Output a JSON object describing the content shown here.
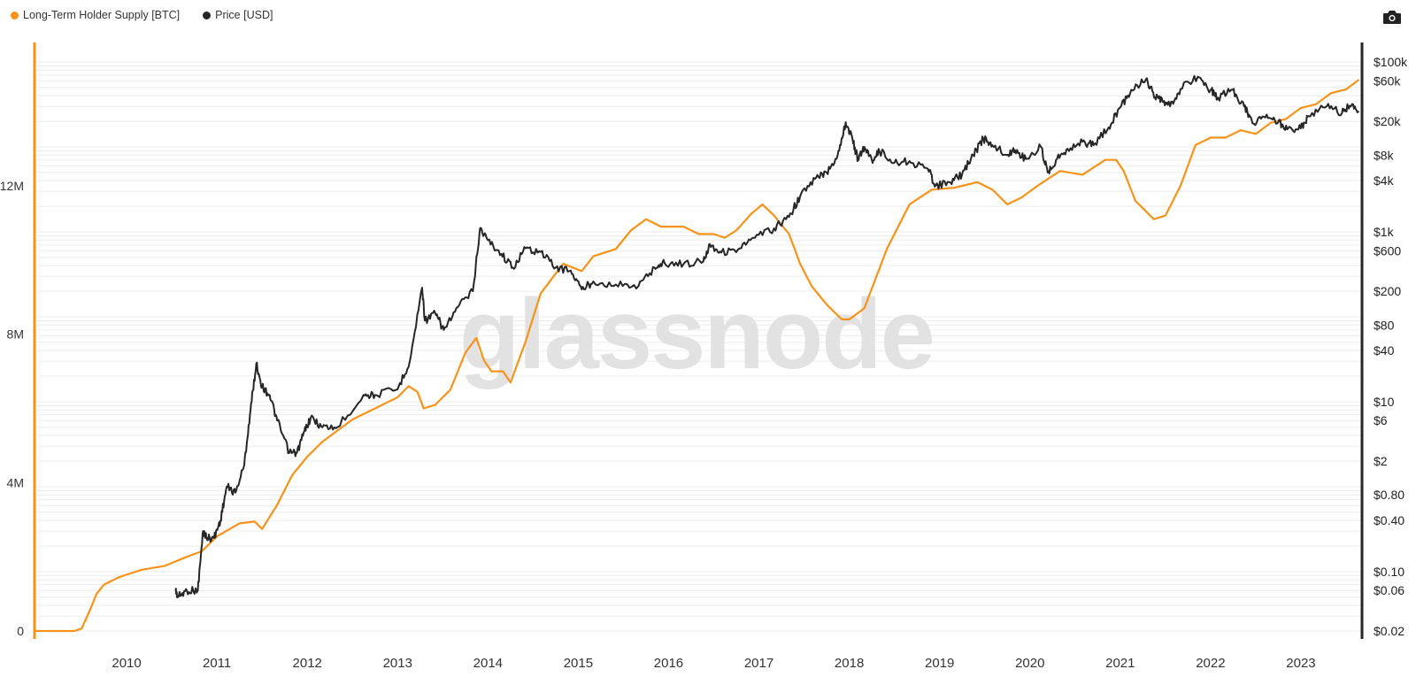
{
  "legend": {
    "lths_label": "Long-Term Holder Supply [BTC]",
    "price_label": "Price [USD]"
  },
  "watermark": "glassnode",
  "colors": {
    "lths": "#f7931a",
    "price": "#262626",
    "grid": "#ececec",
    "axis_left": "#f7931a",
    "axis_right": "#262626"
  },
  "chart_data": {
    "type": "line",
    "title": "",
    "x_axis": {
      "type": "date",
      "range": [
        "2009-01",
        "2023-09"
      ],
      "tick_labels": [
        "2010",
        "2011",
        "2012",
        "2013",
        "2014",
        "2015",
        "2016",
        "2017",
        "2018",
        "2019",
        "2020",
        "2021",
        "2022",
        "2023"
      ]
    },
    "y_left": {
      "label": "",
      "unit": "BTC",
      "range": [
        0,
        16000000
      ],
      "ticks": [
        0,
        4000000,
        8000000,
        12000000
      ],
      "tick_labels": [
        "0",
        "4M",
        "8M",
        "12M"
      ]
    },
    "y_right": {
      "label": "",
      "unit": "USD",
      "scale": "log",
      "range": [
        0.02,
        100000
      ],
      "ticks": [
        0.02,
        0.06,
        0.1,
        0.4,
        0.8,
        2,
        6,
        10,
        40,
        80,
        200,
        600,
        1000,
        4000,
        8000,
        20000,
        60000,
        100000
      ],
      "tick_labels": [
        "$0.02",
        "$0.06",
        "$0.10",
        "$0.40",
        "$0.80",
        "$2",
        "$6",
        "$10",
        "$40",
        "$80",
        "$200",
        "$600",
        "$1k",
        "$4k",
        "$8k",
        "$20k",
        "$60k",
        "$100k"
      ]
    },
    "grid": true,
    "legend_position": "top-left",
    "series": [
      {
        "name": "Long-Term Holder Supply [BTC]",
        "axis": "left",
        "color": "#f7931a",
        "points": [
          [
            "2009-01-01",
            0
          ],
          [
            "2009-06-01",
            0
          ],
          [
            "2009-07-01",
            60000
          ],
          [
            "2009-08-01",
            500000
          ],
          [
            "2009-09-01",
            1000000
          ],
          [
            "2009-10-01",
            1250000
          ],
          [
            "2009-12-01",
            1450000
          ],
          [
            "2010-03-01",
            1650000
          ],
          [
            "2010-06-01",
            1750000
          ],
          [
            "2010-09-01",
            2000000
          ],
          [
            "2010-11-01",
            2150000
          ],
          [
            "2011-01-01",
            2550000
          ],
          [
            "2011-04-01",
            2900000
          ],
          [
            "2011-06-01",
            2950000
          ],
          [
            "2011-07-01",
            2750000
          ],
          [
            "2011-09-01",
            3400000
          ],
          [
            "2011-11-01",
            4200000
          ],
          [
            "2012-01-01",
            4700000
          ],
          [
            "2012-03-01",
            5100000
          ],
          [
            "2012-07-01",
            5700000
          ],
          [
            "2012-10-01",
            6000000
          ],
          [
            "2013-01-01",
            6300000
          ],
          [
            "2013-02-15",
            6600000
          ],
          [
            "2013-03-20",
            6450000
          ],
          [
            "2013-04-15",
            6000000
          ],
          [
            "2013-06-01",
            6100000
          ],
          [
            "2013-08-01",
            6500000
          ],
          [
            "2013-10-01",
            7500000
          ],
          [
            "2013-11-15",
            7900000
          ],
          [
            "2013-12-15",
            7300000
          ],
          [
            "2014-01-15",
            7000000
          ],
          [
            "2014-03-01",
            7000000
          ],
          [
            "2014-04-01",
            6700000
          ],
          [
            "2014-06-01",
            7800000
          ],
          [
            "2014-08-01",
            9100000
          ],
          [
            "2014-11-01",
            9900000
          ],
          [
            "2015-01-15",
            9700000
          ],
          [
            "2015-03-01",
            10100000
          ],
          [
            "2015-06-01",
            10300000
          ],
          [
            "2015-08-01",
            10800000
          ],
          [
            "2015-10-01",
            11100000
          ],
          [
            "2015-12-01",
            10900000
          ],
          [
            "2016-03-01",
            10900000
          ],
          [
            "2016-05-01",
            10700000
          ],
          [
            "2016-07-01",
            10700000
          ],
          [
            "2016-08-15",
            10600000
          ],
          [
            "2016-10-01",
            10800000
          ],
          [
            "2016-12-01",
            11250000
          ],
          [
            "2017-01-15",
            11500000
          ],
          [
            "2017-03-01",
            11200000
          ],
          [
            "2017-05-01",
            10700000
          ],
          [
            "2017-06-15",
            9900000
          ],
          [
            "2017-08-01",
            9300000
          ],
          [
            "2017-10-01",
            8800000
          ],
          [
            "2017-12-01",
            8400000
          ],
          [
            "2018-01-01",
            8400000
          ],
          [
            "2018-03-01",
            8700000
          ],
          [
            "2018-06-01",
            10300000
          ],
          [
            "2018-09-01",
            11500000
          ],
          [
            "2018-12-01",
            11900000
          ],
          [
            "2019-03-01",
            11950000
          ],
          [
            "2019-06-01",
            12100000
          ],
          [
            "2019-08-01",
            11900000
          ],
          [
            "2019-10-01",
            11500000
          ],
          [
            "2019-12-01",
            11700000
          ],
          [
            "2020-02-01",
            12000000
          ],
          [
            "2020-05-01",
            12400000
          ],
          [
            "2020-08-01",
            12300000
          ],
          [
            "2020-11-01",
            12700000
          ],
          [
            "2020-12-15",
            12700000
          ],
          [
            "2021-01-15",
            12400000
          ],
          [
            "2021-03-01",
            11600000
          ],
          [
            "2021-05-15",
            11100000
          ],
          [
            "2021-07-01",
            11200000
          ],
          [
            "2021-09-01",
            12000000
          ],
          [
            "2021-11-01",
            13100000
          ],
          [
            "2022-01-01",
            13300000
          ],
          [
            "2022-03-01",
            13300000
          ],
          [
            "2022-05-01",
            13500000
          ],
          [
            "2022-07-01",
            13400000
          ],
          [
            "2022-09-01",
            13700000
          ],
          [
            "2022-11-01",
            13800000
          ],
          [
            "2023-01-01",
            14100000
          ],
          [
            "2023-03-01",
            14200000
          ],
          [
            "2023-05-01",
            14500000
          ],
          [
            "2023-07-01",
            14600000
          ],
          [
            "2023-08-20",
            14850000
          ]
        ]
      },
      {
        "name": "Price [USD]",
        "axis": "right",
        "color": "#262626",
        "points": [
          [
            "2010-07-17",
            0.06
          ],
          [
            "2010-07-25",
            0.05
          ],
          [
            "2010-09-01",
            0.06
          ],
          [
            "2010-10-15",
            0.06
          ],
          [
            "2010-11-06",
            0.3
          ],
          [
            "2010-11-20",
            0.25
          ],
          [
            "2010-12-20",
            0.25
          ],
          [
            "2011-01-15",
            0.4
          ],
          [
            "2011-02-10",
            1.0
          ],
          [
            "2011-03-15",
            0.85
          ],
          [
            "2011-04-20",
            1.8
          ],
          [
            "2011-05-15",
            8
          ],
          [
            "2011-06-08",
            28
          ],
          [
            "2011-07-01",
            15
          ],
          [
            "2011-08-01",
            12
          ],
          [
            "2011-09-01",
            6
          ],
          [
            "2011-10-20",
            2.5
          ],
          [
            "2011-11-20",
            2.5
          ],
          [
            "2011-12-20",
            4.5
          ],
          [
            "2012-01-15",
            6.5
          ],
          [
            "2012-03-01",
            5
          ],
          [
            "2012-05-01",
            5
          ],
          [
            "2012-08-15",
            12
          ],
          [
            "2012-10-01",
            12
          ],
          [
            "2013-01-01",
            14
          ],
          [
            "2013-02-20",
            30
          ],
          [
            "2013-04-09",
            220
          ],
          [
            "2013-04-20",
            90
          ],
          [
            "2013-06-01",
            110
          ],
          [
            "2013-07-05",
            70
          ],
          [
            "2013-09-01",
            130
          ],
          [
            "2013-11-01",
            200
          ],
          [
            "2013-11-30",
            1100
          ],
          [
            "2014-01-01",
            800
          ],
          [
            "2014-02-25",
            550
          ],
          [
            "2014-04-10",
            380
          ],
          [
            "2014-06-01",
            640
          ],
          [
            "2014-08-01",
            580
          ],
          [
            "2014-10-01",
            380
          ],
          [
            "2014-12-01",
            350
          ],
          [
            "2015-01-15",
            210
          ],
          [
            "2015-03-01",
            260
          ],
          [
            "2015-06-01",
            240
          ],
          [
            "2015-09-01",
            230
          ],
          [
            "2015-11-05",
            380
          ],
          [
            "2015-12-15",
            430
          ],
          [
            "2016-03-01",
            420
          ],
          [
            "2016-05-20",
            450
          ],
          [
            "2016-06-15",
            720
          ],
          [
            "2016-08-01",
            570
          ],
          [
            "2016-10-15",
            640
          ],
          [
            "2016-12-15",
            850
          ],
          [
            "2017-03-01",
            1100
          ],
          [
            "2017-05-01",
            1500
          ],
          [
            "2017-06-15",
            2600
          ],
          [
            "2017-08-15",
            4200
          ],
          [
            "2017-10-01",
            5000
          ],
          [
            "2017-11-15",
            8000
          ],
          [
            "2017-12-17",
            19500
          ],
          [
            "2018-01-15",
            12000
          ],
          [
            "2018-02-06",
            7000
          ],
          [
            "2018-03-01",
            10000
          ],
          [
            "2018-04-01",
            7000
          ],
          [
            "2018-05-01",
            9000
          ],
          [
            "2018-07-01",
            6500
          ],
          [
            "2018-09-01",
            6800
          ],
          [
            "2018-11-15",
            5500
          ],
          [
            "2018-12-15",
            3500
          ],
          [
            "2019-02-15",
            3800
          ],
          [
            "2019-04-01",
            4800
          ],
          [
            "2019-05-15",
            8000
          ],
          [
            "2019-06-26",
            12500
          ],
          [
            "2019-08-01",
            10500
          ],
          [
            "2019-10-01",
            8000
          ],
          [
            "2019-11-01",
            9200
          ],
          [
            "2019-12-15",
            7200
          ],
          [
            "2020-02-15",
            10000
          ],
          [
            "2020-03-12",
            5000
          ],
          [
            "2020-04-15",
            7000
          ],
          [
            "2020-06-01",
            9500
          ],
          [
            "2020-08-01",
            11500
          ],
          [
            "2020-09-15",
            10500
          ],
          [
            "2020-11-15",
            17000
          ],
          [
            "2020-12-31",
            29000
          ],
          [
            "2021-02-15",
            47000
          ],
          [
            "2021-04-14",
            63000
          ],
          [
            "2021-05-20",
            38000
          ],
          [
            "2021-06-20",
            34000
          ],
          [
            "2021-07-20",
            30000
          ],
          [
            "2021-09-01",
            48000
          ],
          [
            "2021-11-10",
            67000
          ],
          [
            "2022-01-01",
            47000
          ],
          [
            "2022-02-01",
            38000
          ],
          [
            "2022-03-29",
            47000
          ],
          [
            "2022-05-15",
            30000
          ],
          [
            "2022-06-18",
            19000
          ],
          [
            "2022-08-15",
            24000
          ],
          [
            "2022-10-01",
            19500
          ],
          [
            "2022-11-10",
            16500
          ],
          [
            "2022-12-31",
            16500
          ],
          [
            "2023-02-01",
            23000
          ],
          [
            "2023-04-14",
            30000
          ],
          [
            "2023-06-15",
            25000
          ],
          [
            "2023-07-15",
            30500
          ],
          [
            "2023-08-20",
            26000
          ]
        ]
      }
    ]
  }
}
